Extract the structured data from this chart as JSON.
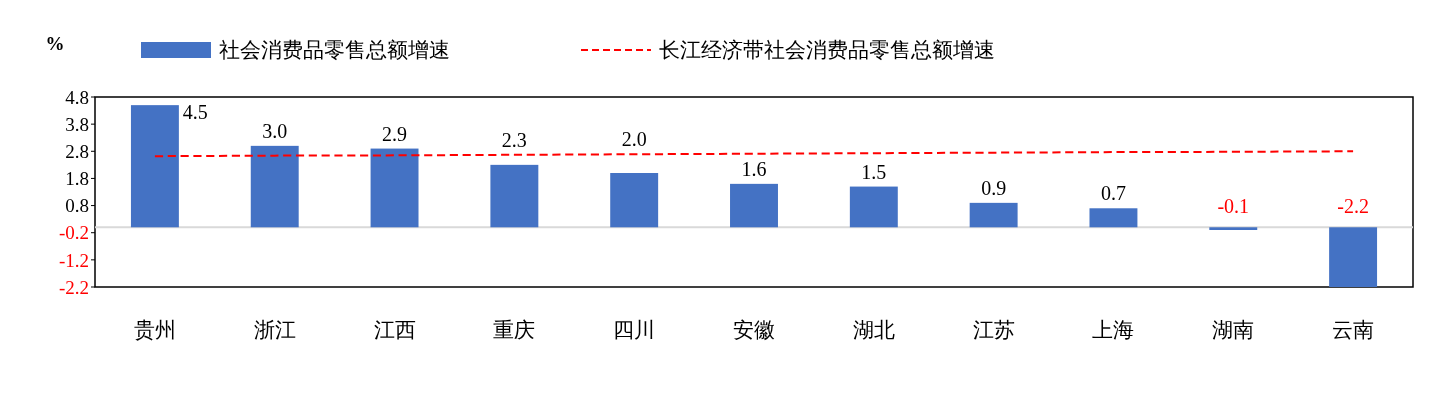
{
  "chart_data": {
    "type": "bar",
    "ylabel": "%",
    "categories": [
      "贵州",
      "浙江",
      "江西",
      "重庆",
      "四川",
      "安徽",
      "湖北",
      "江苏",
      "上海",
      "湖南",
      "云南"
    ],
    "series": [
      {
        "name": "社会消费品零售总额增速",
        "color": "#4472c4",
        "values": [
          4.5,
          3.0,
          2.9,
          2.3,
          2.0,
          1.6,
          1.5,
          0.9,
          0.7,
          -0.1,
          -2.2
        ],
        "value_labels": [
          "4.5",
          "3.0",
          "2.9",
          "2.3",
          "2.0",
          "1.6",
          "1.5",
          "0.9",
          "0.7",
          "-0.1",
          "-2.2"
        ]
      },
      {
        "name": "长江经济带社会消费品零售总额增速",
        "type": "line",
        "color": "#ff0000",
        "line_style": "dashed",
        "values": [
          2.62,
          2.64,
          2.65,
          2.67,
          2.69,
          2.71,
          2.73,
          2.75,
          2.77,
          2.78,
          2.8
        ]
      }
    ],
    "ylim": [
      -2.2,
      4.8
    ],
    "yticks": [
      -2.2,
      -1.2,
      -0.2,
      0.8,
      1.8,
      2.8,
      3.8,
      4.8
    ],
    "legend": "top",
    "grid": false
  }
}
